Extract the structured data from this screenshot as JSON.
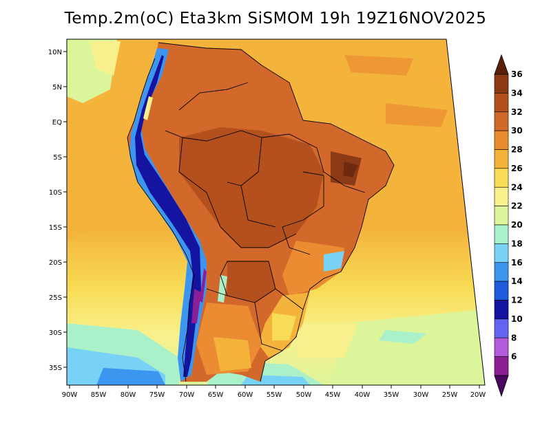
{
  "title": "Temp.2m(oC) Eta3km SiSMOM 19h 19Z16NOV2025",
  "axes": {
    "lat_labels": [
      "10N",
      "5N",
      "EQ",
      "5S",
      "10S",
      "15S",
      "20S",
      "25S",
      "30S",
      "35S"
    ],
    "lon_labels": [
      "90W",
      "85W",
      "80W",
      "75W",
      "70W",
      "65W",
      "60W",
      "55W",
      "50W",
      "45W",
      "40W",
      "35W",
      "30W",
      "25W",
      "20W"
    ]
  },
  "colorbar": {
    "labels": [
      "36",
      "34",
      "32",
      "30",
      "28",
      "26",
      "24",
      "22",
      "20",
      "18",
      "16",
      "14",
      "12",
      "10",
      "8",
      "6"
    ],
    "colors": [
      "#6e2a10",
      "#8c3a16",
      "#b4501e",
      "#d2692a",
      "#eb8c32",
      "#f4b43c",
      "#f8dc55",
      "#f8f08c",
      "#dcf59b",
      "#aaf0c8",
      "#78d2f5",
      "#3c96f0",
      "#1e5adc",
      "#1414a0",
      "#6464f0",
      "#b45adc",
      "#8c1e96",
      "#5a0a6e"
    ]
  }
}
